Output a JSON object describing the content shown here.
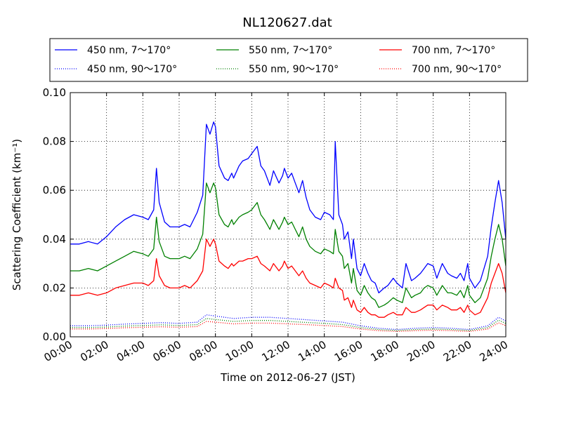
{
  "chart_data": {
    "type": "line",
    "title": "NL120627.dat",
    "xlabel": "Time on 2012-06-27 (JST)",
    "ylabel": "Scattering Coefficient (km⁻¹)",
    "x_ticks": [
      "00:00",
      "02:00",
      "04:00",
      "06:00",
      "08:00",
      "10:00",
      "12:00",
      "14:00",
      "16:00",
      "18:00",
      "20:00",
      "22:00",
      "24:00"
    ],
    "y_ticks": [
      "0.00",
      "0.02",
      "0.04",
      "0.06",
      "0.08",
      "0.10"
    ],
    "xlim": [
      0,
      24
    ],
    "ylim": [
      0,
      0.1
    ],
    "grid": true,
    "legend_position": "top",
    "series": [
      {
        "name": "450 nm, 7～170°",
        "color": "#0000ff",
        "style": "solid",
        "x": [
          0,
          0.5,
          1,
          1.5,
          2,
          2.5,
          3,
          3.5,
          4,
          4.3,
          4.6,
          4.75,
          4.9,
          5.2,
          5.5,
          6,
          6.3,
          6.6,
          7,
          7.3,
          7.5,
          7.7,
          7.9,
          8,
          8.2,
          8.5,
          8.7,
          8.9,
          9,
          9.3,
          9.5,
          9.8,
          10,
          10.3,
          10.5,
          10.7,
          11,
          11.2,
          11.5,
          11.7,
          11.8,
          12,
          12.2,
          12.4,
          12.6,
          12.8,
          13,
          13.2,
          13.5,
          13.8,
          14,
          14.3,
          14.5,
          14.6,
          14.8,
          15,
          15.1,
          15.3,
          15.5,
          15.6,
          15.8,
          16,
          16.2,
          16.4,
          16.6,
          16.8,
          17,
          17.3,
          17.5,
          17.8,
          18,
          18.3,
          18.5,
          18.8,
          19,
          19.3,
          19.5,
          19.7,
          20,
          20.2,
          20.5,
          20.8,
          21,
          21.3,
          21.5,
          21.7,
          21.9,
          22,
          22.3,
          22.6,
          23,
          23.2,
          23.4,
          23.6,
          23.8,
          24
        ],
        "y": [
          0.038,
          0.038,
          0.039,
          0.038,
          0.041,
          0.045,
          0.048,
          0.05,
          0.049,
          0.048,
          0.052,
          0.069,
          0.055,
          0.047,
          0.045,
          0.045,
          0.046,
          0.045,
          0.051,
          0.058,
          0.087,
          0.083,
          0.088,
          0.086,
          0.07,
          0.065,
          0.064,
          0.067,
          0.065,
          0.07,
          0.072,
          0.073,
          0.075,
          0.078,
          0.07,
          0.068,
          0.062,
          0.068,
          0.063,
          0.066,
          0.069,
          0.065,
          0.067,
          0.063,
          0.059,
          0.064,
          0.057,
          0.052,
          0.049,
          0.048,
          0.051,
          0.05,
          0.048,
          0.08,
          0.05,
          0.046,
          0.04,
          0.043,
          0.032,
          0.04,
          0.028,
          0.025,
          0.03,
          0.026,
          0.023,
          0.022,
          0.018,
          0.02,
          0.021,
          0.024,
          0.022,
          0.02,
          0.03,
          0.023,
          0.024,
          0.026,
          0.028,
          0.03,
          0.029,
          0.024,
          0.03,
          0.026,
          0.025,
          0.024,
          0.026,
          0.023,
          0.03,
          0.024,
          0.02,
          0.023,
          0.033,
          0.045,
          0.055,
          0.064,
          0.055,
          0.04
        ]
      },
      {
        "name": "550 nm, 7～170°",
        "color": "#008000",
        "style": "solid",
        "x": [
          0,
          0.5,
          1,
          1.5,
          2,
          2.5,
          3,
          3.5,
          4,
          4.3,
          4.6,
          4.75,
          4.9,
          5.2,
          5.5,
          6,
          6.3,
          6.6,
          7,
          7.3,
          7.5,
          7.7,
          7.9,
          8,
          8.2,
          8.5,
          8.7,
          8.9,
          9,
          9.3,
          9.5,
          9.8,
          10,
          10.3,
          10.5,
          10.7,
          11,
          11.2,
          11.5,
          11.7,
          11.8,
          12,
          12.2,
          12.4,
          12.6,
          12.8,
          13,
          13.2,
          13.5,
          13.8,
          14,
          14.3,
          14.5,
          14.6,
          14.8,
          15,
          15.1,
          15.3,
          15.5,
          15.6,
          15.8,
          16,
          16.2,
          16.4,
          16.6,
          16.8,
          17,
          17.3,
          17.5,
          17.8,
          18,
          18.3,
          18.5,
          18.8,
          19,
          19.3,
          19.5,
          19.7,
          20,
          20.2,
          20.5,
          20.8,
          21,
          21.3,
          21.5,
          21.7,
          21.9,
          22,
          22.3,
          22.6,
          23,
          23.2,
          23.4,
          23.6,
          23.8,
          24
        ],
        "y": [
          0.027,
          0.027,
          0.028,
          0.027,
          0.029,
          0.031,
          0.033,
          0.035,
          0.034,
          0.033,
          0.036,
          0.049,
          0.039,
          0.033,
          0.032,
          0.032,
          0.033,
          0.032,
          0.036,
          0.042,
          0.063,
          0.059,
          0.063,
          0.061,
          0.05,
          0.046,
          0.045,
          0.048,
          0.046,
          0.049,
          0.05,
          0.051,
          0.052,
          0.055,
          0.05,
          0.048,
          0.044,
          0.048,
          0.044,
          0.047,
          0.049,
          0.046,
          0.047,
          0.044,
          0.041,
          0.045,
          0.04,
          0.037,
          0.035,
          0.034,
          0.036,
          0.035,
          0.034,
          0.044,
          0.035,
          0.033,
          0.028,
          0.03,
          0.022,
          0.028,
          0.019,
          0.017,
          0.021,
          0.018,
          0.016,
          0.015,
          0.012,
          0.013,
          0.014,
          0.016,
          0.015,
          0.014,
          0.02,
          0.016,
          0.017,
          0.018,
          0.02,
          0.021,
          0.02,
          0.017,
          0.021,
          0.018,
          0.018,
          0.017,
          0.019,
          0.016,
          0.021,
          0.017,
          0.014,
          0.016,
          0.024,
          0.033,
          0.04,
          0.046,
          0.04,
          0.029
        ]
      },
      {
        "name": "700 nm, 7～170°",
        "color": "#ff0000",
        "style": "solid",
        "x": [
          0,
          0.5,
          1,
          1.5,
          2,
          2.5,
          3,
          3.5,
          4,
          4.3,
          4.6,
          4.75,
          4.9,
          5.2,
          5.5,
          6,
          6.3,
          6.6,
          7,
          7.3,
          7.5,
          7.7,
          7.9,
          8,
          8.2,
          8.5,
          8.7,
          8.9,
          9,
          9.3,
          9.5,
          9.8,
          10,
          10.3,
          10.5,
          10.7,
          11,
          11.2,
          11.5,
          11.7,
          11.8,
          12,
          12.2,
          12.4,
          12.6,
          12.8,
          13,
          13.2,
          13.5,
          13.8,
          14,
          14.3,
          14.5,
          14.6,
          14.8,
          15,
          15.1,
          15.3,
          15.5,
          15.6,
          15.8,
          16,
          16.2,
          16.4,
          16.6,
          16.8,
          17,
          17.3,
          17.5,
          17.8,
          18,
          18.3,
          18.5,
          18.8,
          19,
          19.3,
          19.5,
          19.7,
          20,
          20.2,
          20.5,
          20.8,
          21,
          21.3,
          21.5,
          21.7,
          21.9,
          22,
          22.3,
          22.6,
          23,
          23.2,
          23.4,
          23.6,
          23.8,
          24
        ],
        "y": [
          0.017,
          0.017,
          0.018,
          0.017,
          0.018,
          0.02,
          0.021,
          0.022,
          0.022,
          0.021,
          0.023,
          0.032,
          0.025,
          0.021,
          0.02,
          0.02,
          0.021,
          0.02,
          0.023,
          0.027,
          0.04,
          0.037,
          0.04,
          0.038,
          0.031,
          0.029,
          0.028,
          0.03,
          0.029,
          0.031,
          0.031,
          0.032,
          0.032,
          0.033,
          0.03,
          0.029,
          0.027,
          0.03,
          0.027,
          0.029,
          0.031,
          0.028,
          0.029,
          0.027,
          0.025,
          0.027,
          0.024,
          0.022,
          0.021,
          0.02,
          0.022,
          0.021,
          0.02,
          0.024,
          0.02,
          0.019,
          0.015,
          0.016,
          0.012,
          0.015,
          0.011,
          0.01,
          0.012,
          0.01,
          0.009,
          0.009,
          0.008,
          0.008,
          0.009,
          0.01,
          0.009,
          0.009,
          0.012,
          0.01,
          0.01,
          0.011,
          0.012,
          0.013,
          0.013,
          0.011,
          0.013,
          0.012,
          0.011,
          0.011,
          0.012,
          0.01,
          0.013,
          0.011,
          0.009,
          0.01,
          0.016,
          0.022,
          0.026,
          0.03,
          0.026,
          0.018
        ]
      },
      {
        "name": "450 nm, 90～170°",
        "color": "#0000ff",
        "style": "dotted",
        "x": [
          0,
          1,
          2,
          3,
          4,
          5,
          6,
          7,
          7.5,
          8,
          9,
          10,
          11,
          12,
          13,
          14,
          15,
          16,
          17,
          18,
          19,
          20,
          21,
          22,
          23,
          23.6,
          24
        ],
        "y": [
          0.0045,
          0.0045,
          0.0048,
          0.0052,
          0.0055,
          0.0058,
          0.0055,
          0.006,
          0.009,
          0.0085,
          0.0075,
          0.008,
          0.008,
          0.0075,
          0.007,
          0.0065,
          0.006,
          0.0045,
          0.0035,
          0.003,
          0.0035,
          0.0038,
          0.0035,
          0.003,
          0.0045,
          0.008,
          0.0065
        ]
      },
      {
        "name": "550 nm, 90～170°",
        "color": "#008000",
        "style": "dotted",
        "x": [
          0,
          1,
          2,
          3,
          4,
          5,
          6,
          7,
          7.5,
          8,
          9,
          10,
          11,
          12,
          13,
          14,
          15,
          16,
          17,
          18,
          19,
          20,
          21,
          22,
          23,
          23.6,
          24
        ],
        "y": [
          0.0038,
          0.0038,
          0.004,
          0.0044,
          0.0046,
          0.0049,
          0.0046,
          0.005,
          0.0075,
          0.0071,
          0.0063,
          0.0067,
          0.0067,
          0.0063,
          0.0059,
          0.0055,
          0.005,
          0.0038,
          0.003,
          0.0026,
          0.003,
          0.0032,
          0.003,
          0.0026,
          0.0038,
          0.0068,
          0.0055
        ]
      },
      {
        "name": "700 nm, 90～170°",
        "color": "#ff0000",
        "style": "dotted",
        "x": [
          0,
          1,
          2,
          3,
          4,
          5,
          6,
          7,
          7.5,
          8,
          9,
          10,
          11,
          12,
          13,
          14,
          15,
          16,
          17,
          18,
          19,
          20,
          21,
          22,
          23,
          23.6,
          24
        ],
        "y": [
          0.0032,
          0.0032,
          0.0034,
          0.0037,
          0.0039,
          0.0041,
          0.0039,
          0.0042,
          0.0063,
          0.006,
          0.0053,
          0.0056,
          0.0056,
          0.0053,
          0.005,
          0.0046,
          0.0042,
          0.0032,
          0.0025,
          0.0022,
          0.0025,
          0.0027,
          0.0025,
          0.0022,
          0.0032,
          0.0057,
          0.0046
        ]
      }
    ]
  }
}
